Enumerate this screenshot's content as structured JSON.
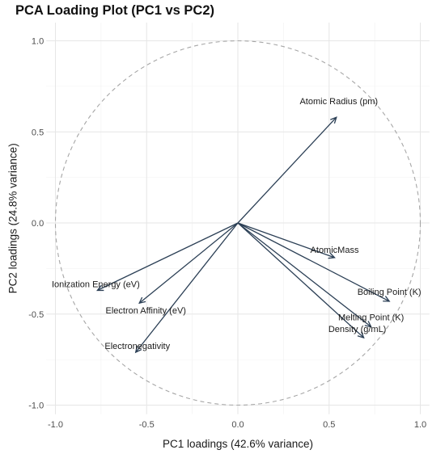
{
  "chart_data": {
    "type": "scatter",
    "title": "PCA Loading Plot (PC1 vs PC2)",
    "xlabel": "PC1 loadings (42.6% variance)",
    "ylabel": "PC2 loadings (24.8% variance)",
    "xlim": [
      -1.05,
      1.05
    ],
    "ylim": [
      -1.05,
      1.1
    ],
    "x_ticks": [
      "-1.0",
      "-0.5",
      "0.0",
      "0.5",
      "1.0"
    ],
    "y_ticks": [
      "-1.0",
      "-0.5",
      "0.0",
      "0.5",
      "1.0"
    ],
    "grid": true,
    "unit_circle": true,
    "vector_color": "#2b3f55",
    "circle_color": "#a6a6a6",
    "vectors": [
      {
        "name": "Atomic Radius (pm)",
        "x": 0.54,
        "y": 0.58
      },
      {
        "name": "AtomicMass",
        "x": 0.53,
        "y": -0.19
      },
      {
        "name": "Boiling Point (K)",
        "x": 0.83,
        "y": -0.43
      },
      {
        "name": "Melting Point (K)",
        "x": 0.73,
        "y": -0.57
      },
      {
        "name": "Density (g/mL)",
        "x": 0.69,
        "y": -0.63
      },
      {
        "name": "Ionization Energy (eV)",
        "x": -0.77,
        "y": -0.37
      },
      {
        "name": "Electron Affinity (eV)",
        "x": -0.54,
        "y": -0.44
      },
      {
        "name": "Electronegativity",
        "x": -0.56,
        "y": -0.71
      }
    ]
  }
}
